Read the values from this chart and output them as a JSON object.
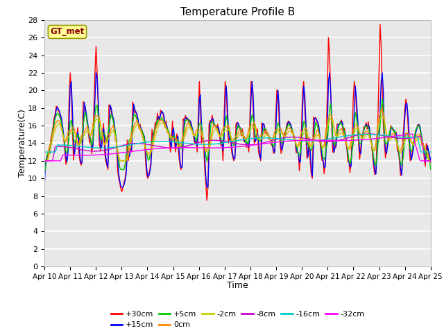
{
  "title": "Temperature Profile B",
  "xlabel": "Time",
  "ylabel": "Temperature(C)",
  "annotation": "GT_met",
  "ylim": [
    0,
    28
  ],
  "yticks": [
    0,
    2,
    4,
    6,
    8,
    10,
    12,
    14,
    16,
    18,
    20,
    22,
    24,
    26,
    28
  ],
  "xtick_labels": [
    "Apr 10",
    "Apr 11",
    "Apr 12",
    "Apr 13",
    "Apr 14",
    "Apr 15",
    "Apr 16",
    "Apr 17",
    "Apr 18",
    "Apr 19",
    "Apr 20",
    "Apr 21",
    "Apr 22",
    "Apr 23",
    "Apr 24",
    "Apr 25"
  ],
  "series": [
    {
      "label": "+30cm",
      "color": "#ff0000",
      "lw": 1.0
    },
    {
      "label": "+15cm",
      "color": "#0000ff",
      "lw": 1.0
    },
    {
      "label": "+5cm",
      "color": "#00cc00",
      "lw": 1.0
    },
    {
      "label": "0cm",
      "color": "#ff8800",
      "lw": 1.0
    },
    {
      "label": "-2cm",
      "color": "#cccc00",
      "lw": 1.0
    },
    {
      "label": "-8cm",
      "color": "#cc00cc",
      "lw": 1.0
    },
    {
      "label": "-16cm",
      "color": "#00cccc",
      "lw": 1.0
    },
    {
      "label": "-32cm",
      "color": "#ff00ff",
      "lw": 1.0
    }
  ],
  "background_color": "#e8e8e8",
  "grid_color": "#ffffff"
}
